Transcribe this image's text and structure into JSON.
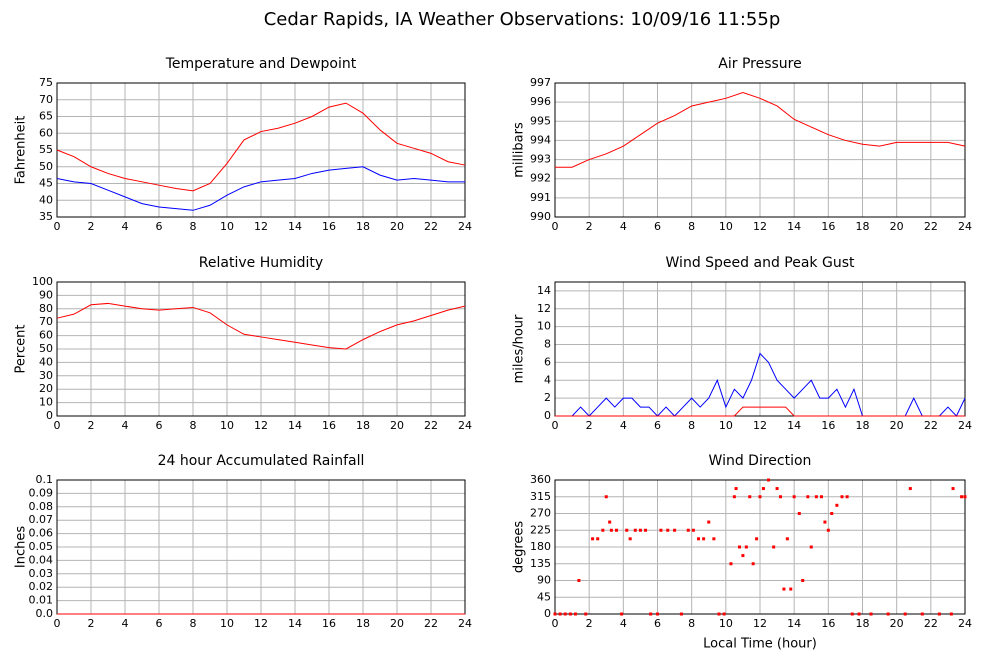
{
  "title": "Cedar Rapids, IA Weather Observations: 10/09/16 11:55p",
  "chart_data": [
    {
      "type": "line",
      "title": "Temperature and Dewpoint",
      "ylabel": "Fahrenheit",
      "x": [
        0,
        1,
        2,
        3,
        4,
        5,
        6,
        7,
        8,
        9,
        10,
        11,
        12,
        13,
        14,
        15,
        16,
        17,
        18,
        19,
        20,
        21,
        22,
        23,
        24
      ],
      "series": [
        {
          "color": "#ff0000",
          "values": [
            55,
            53,
            50,
            48,
            46.5,
            45.5,
            44.5,
            43.5,
            42.8,
            45,
            51,
            58,
            60.5,
            61.5,
            63,
            65,
            67.8,
            69,
            66,
            61,
            57,
            55.5,
            54,
            51.5,
            50.5
          ]
        },
        {
          "color": "#0000ff",
          "values": [
            46.5,
            45.5,
            45,
            43,
            41,
            39,
            38,
            37.5,
            37,
            38.5,
            41.5,
            44,
            45.5,
            46,
            46.5,
            48,
            49,
            49.5,
            50,
            47.5,
            46,
            46.5,
            46,
            45.5,
            45.5
          ]
        }
      ],
      "xlim": [
        0,
        24
      ],
      "xticks": [
        0,
        2,
        4,
        6,
        8,
        10,
        12,
        14,
        16,
        18,
        20,
        22,
        24
      ],
      "ylim": [
        35,
        75
      ],
      "yticks": [
        35,
        40,
        45,
        50,
        55,
        60,
        65,
        70,
        75
      ],
      "grid": true
    },
    {
      "type": "line",
      "title": "Air Pressure",
      "ylabel": "millibars",
      "x": [
        0,
        1,
        2,
        3,
        4,
        5,
        6,
        7,
        8,
        9,
        10,
        11,
        12,
        13,
        14,
        15,
        16,
        17,
        18,
        19,
        20,
        21,
        22,
        23,
        24
      ],
      "series": [
        {
          "color": "#ff0000",
          "values": [
            992.6,
            992.6,
            993,
            993.3,
            993.7,
            994.3,
            994.9,
            995.3,
            995.8,
            996,
            996.2,
            996.5,
            996.2,
            995.8,
            995.1,
            994.7,
            994.3,
            994,
            993.8,
            993.7,
            993.9,
            993.9,
            993.9,
            993.9,
            993.7
          ]
        }
      ],
      "xlim": [
        0,
        24
      ],
      "xticks": [
        0,
        2,
        4,
        6,
        8,
        10,
        12,
        14,
        16,
        18,
        20,
        22,
        24
      ],
      "ylim": [
        990,
        997
      ],
      "yticks": [
        990,
        991,
        992,
        993,
        994,
        995,
        996,
        997
      ],
      "grid": true
    },
    {
      "type": "line",
      "title": "Relative Humidity",
      "ylabel": "Percent",
      "x": [
        0,
        1,
        2,
        3,
        4,
        5,
        6,
        7,
        8,
        9,
        10,
        11,
        12,
        13,
        14,
        15,
        16,
        17,
        18,
        19,
        20,
        21,
        22,
        23,
        24
      ],
      "series": [
        {
          "color": "#ff0000",
          "values": [
            73,
            76,
            83,
            84,
            82,
            80,
            79,
            80,
            81,
            77,
            68,
            61,
            59,
            57,
            55,
            53,
            51,
            50,
            57,
            63,
            68,
            71,
            75,
            79,
            82
          ]
        }
      ],
      "xlim": [
        0,
        24
      ],
      "xticks": [
        0,
        2,
        4,
        6,
        8,
        10,
        12,
        14,
        16,
        18,
        20,
        22,
        24
      ],
      "ylim": [
        0,
        100
      ],
      "yticks": [
        0,
        10,
        20,
        30,
        40,
        50,
        60,
        70,
        80,
        90,
        100
      ],
      "grid": true
    },
    {
      "type": "line",
      "title": "Wind Speed and Peak Gust",
      "ylabel": "miles/hour",
      "x": [
        0,
        0.5,
        1,
        1.5,
        2,
        2.5,
        3,
        3.5,
        4,
        4.5,
        5,
        5.5,
        6,
        6.5,
        7,
        7.5,
        8,
        8.5,
        9,
        9.5,
        10,
        10.5,
        11,
        11.5,
        12,
        12.5,
        13,
        13.5,
        14,
        14.5,
        15,
        15.5,
        16,
        16.5,
        17,
        17.5,
        18,
        18.5,
        19,
        19.5,
        20,
        20.5,
        21,
        21.5,
        22,
        22.5,
        23,
        23.5,
        24
      ],
      "series": [
        {
          "color": "#0000ff",
          "values": [
            0,
            0,
            0,
            1,
            0,
            1,
            2,
            1,
            2,
            2,
            1,
            1,
            0,
            1,
            0,
            1,
            2,
            1,
            2,
            4,
            1,
            3,
            2,
            4,
            7,
            6,
            4,
            3,
            2,
            3,
            4,
            2,
            2,
            3,
            1,
            3,
            0,
            0,
            0,
            0,
            0,
            0,
            2,
            0,
            0,
            0,
            1,
            0,
            2
          ]
        },
        {
          "color": "#ff0000",
          "values": [
            0,
            0,
            0,
            0,
            0,
            0,
            0,
            0,
            0,
            0,
            0,
            0,
            0,
            0,
            0,
            0,
            0,
            0,
            0,
            0,
            0,
            0,
            1,
            1,
            1,
            1,
            1,
            1,
            0,
            0,
            0,
            0,
            0,
            0,
            0,
            0,
            0,
            0,
            0,
            0,
            0,
            0,
            0,
            0,
            0,
            0,
            0,
            0,
            0
          ]
        }
      ],
      "xlim": [
        0,
        24
      ],
      "xticks": [
        0,
        2,
        4,
        6,
        8,
        10,
        12,
        14,
        16,
        18,
        20,
        22,
        24
      ],
      "ylim": [
        0,
        15
      ],
      "yticks": [
        0,
        2,
        4,
        6,
        8,
        10,
        12,
        14
      ],
      "grid": true
    },
    {
      "type": "line",
      "title": "24 hour Accumulated Rainfall",
      "ylabel": "Inches",
      "x": [
        0,
        24
      ],
      "series": [
        {
          "color": "#ff0000",
          "values": [
            0,
            0
          ]
        }
      ],
      "xlim": [
        0,
        24
      ],
      "xticks": [
        0,
        2,
        4,
        6,
        8,
        10,
        12,
        14,
        16,
        18,
        20,
        22,
        24
      ],
      "ylim": [
        0,
        0.1
      ],
      "yticks": [
        {
          "value": 0,
          "label": "0.0"
        },
        0.01,
        0.02,
        0.03,
        0.04,
        0.05,
        0.06,
        0.07,
        0.08,
        0.09,
        0.1
      ],
      "grid": true
    },
    {
      "type": "scatter",
      "title": "Wind Direction",
      "ylabel": "degrees",
      "xlabel": "Local Time (hour)",
      "x": [
        0,
        0.3,
        0.6,
        0.9,
        1.2,
        1.4,
        1.8,
        2.2,
        2.5,
        2.8,
        3.0,
        3.2,
        3.3,
        3.6,
        3.9,
        4.2,
        4.4,
        4.7,
        5.0,
        5.3,
        5.6,
        6.0,
        6.2,
        6.6,
        7.0,
        7.4,
        7.8,
        8.1,
        8.4,
        8.7,
        9.0,
        9.3,
        9.6,
        9.9,
        10.3,
        10.5,
        10.6,
        10.8,
        11.0,
        11.2,
        11.4,
        11.6,
        11.8,
        12.0,
        12.2,
        12.5,
        12.8,
        13.0,
        13.2,
        13.4,
        13.6,
        13.8,
        14.0,
        14.3,
        14.5,
        14.8,
        15.0,
        15.3,
        15.6,
        15.8,
        16.0,
        16.2,
        16.5,
        16.8,
        17.1,
        17.4,
        17.8,
        18.5,
        19.5,
        20.5,
        20.8,
        21.5,
        22.5,
        23.2,
        23.3,
        23.8,
        24
      ],
      "series": [
        {
          "color": "#ff0000",
          "values": [
            0,
            0,
            0,
            0,
            0,
            90,
            0,
            202,
            202,
            225,
            315,
            247,
            225,
            225,
            0,
            225,
            202,
            225,
            225,
            225,
            0,
            0,
            225,
            225,
            225,
            0,
            225,
            225,
            202,
            202,
            247,
            202,
            0,
            0,
            135,
            315,
            337,
            180,
            157,
            180,
            315,
            135,
            202,
            315,
            337,
            360,
            180,
            337,
            315,
            67,
            202,
            67,
            315,
            270,
            90,
            315,
            180,
            315,
            315,
            247,
            225,
            270,
            292,
            315,
            315,
            0,
            0,
            0,
            0,
            0,
            337,
            0,
            0,
            0,
            337,
            315,
            315
          ]
        }
      ],
      "xlim": [
        0,
        24
      ],
      "xticks": [
        0,
        2,
        4,
        6,
        8,
        10,
        12,
        14,
        16,
        18,
        20,
        22,
        24
      ],
      "ylim": [
        0,
        360
      ],
      "yticks": [
        0,
        45,
        90,
        135,
        180,
        225,
        270,
        315,
        360
      ],
      "grid": true
    }
  ]
}
